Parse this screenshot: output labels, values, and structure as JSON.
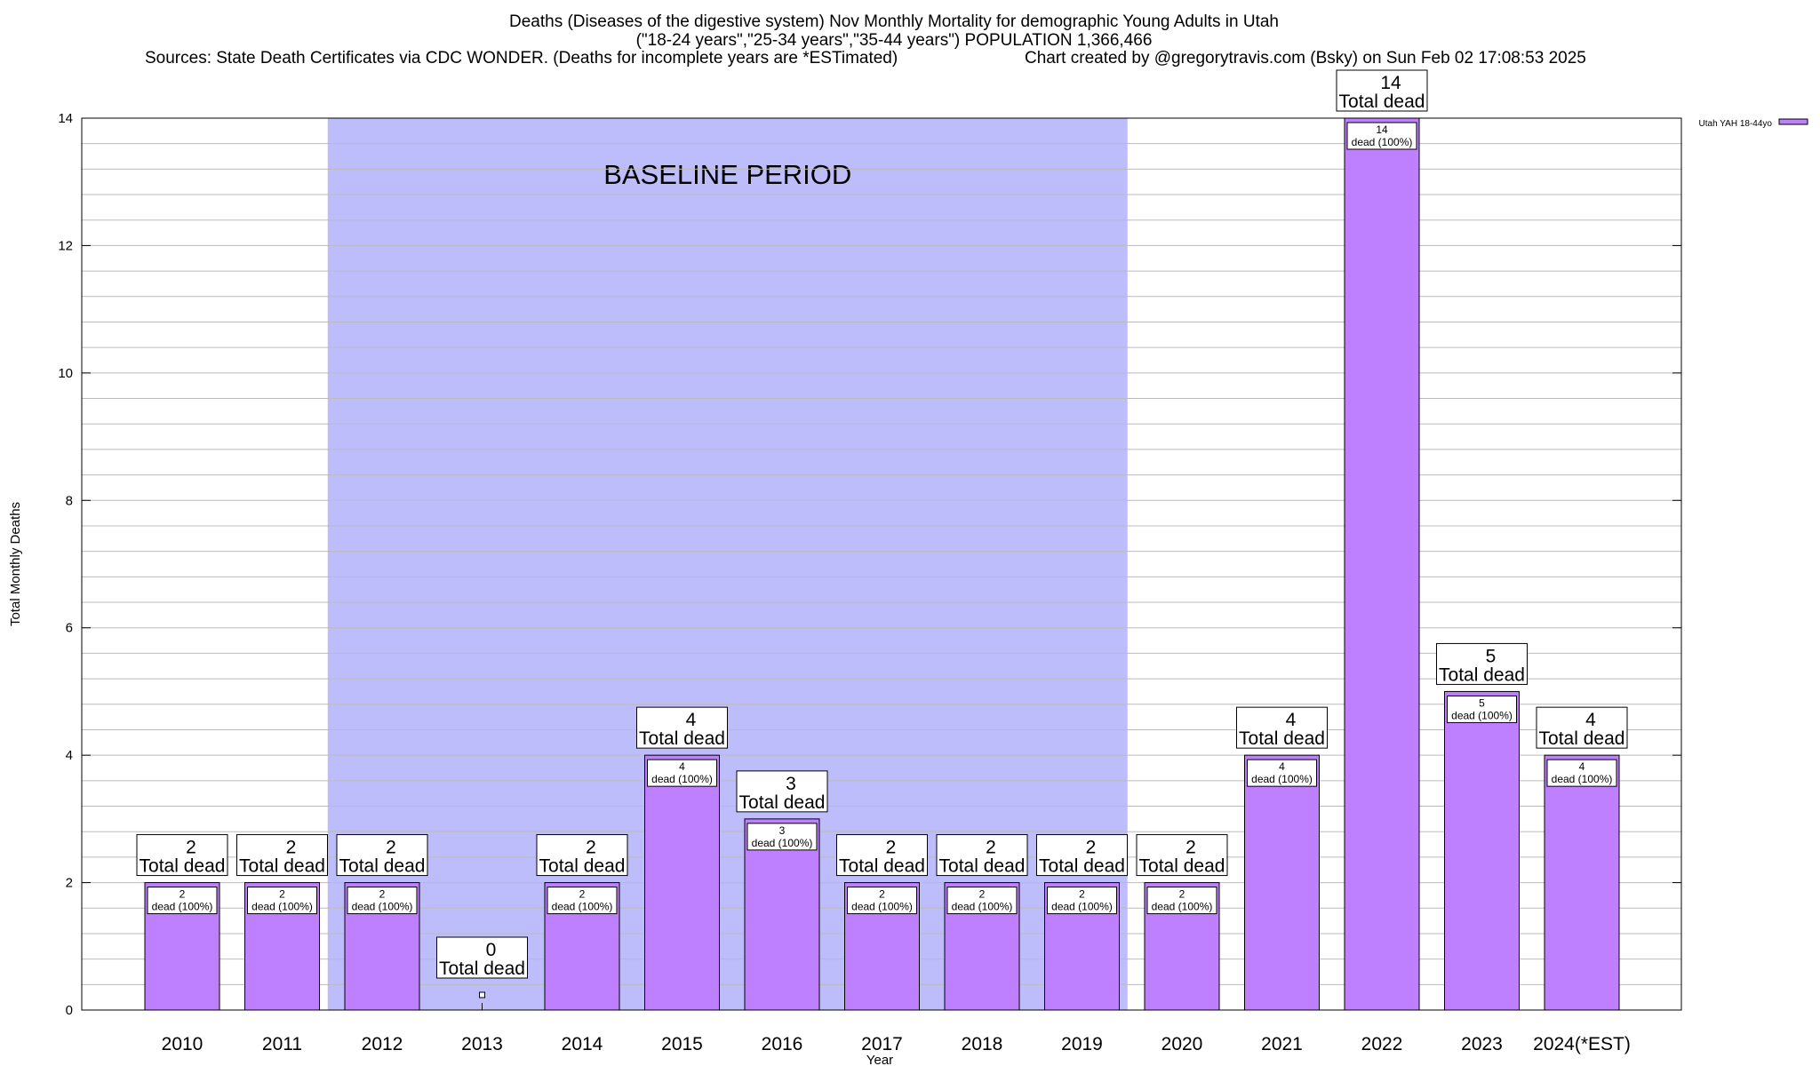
{
  "titles": {
    "line1": "Deaths (Diseases of the digestive system) Nov Monthly Mortality for demographic Young Adults in Utah",
    "line2": "(\"18-24 years\",\"25-34 years\",\"35-44 years\") POPULATION 1,366,466",
    "sources": "Sources: State Death Certificates via CDC WONDER. (Deaths for incomplete years are *ESTimated)",
    "credit": "Chart created by @gregorytravis.com (Bsky) on Sun Feb 02 17:08:53 2025"
  },
  "chart_data": {
    "type": "bar",
    "categories": [
      "2010",
      "2011",
      "2012",
      "2013",
      "2014",
      "2015",
      "2016",
      "2017",
      "2018",
      "2019",
      "2020",
      "2021",
      "2022",
      "2023",
      "2024(*EST)"
    ],
    "series": [
      {
        "name": "Utah YAH 18-44yo",
        "values": [
          2,
          2,
          2,
          0,
          2,
          4,
          3,
          2,
          2,
          2,
          2,
          4,
          14,
          5,
          4
        ]
      }
    ],
    "xlabel": "Year",
    "ylabel": "Total Monthly Deaths",
    "ylim": [
      0,
      14
    ],
    "yticks": [
      0,
      2,
      4,
      6,
      8,
      10,
      12,
      14
    ],
    "grid": true,
    "legend_placement": "top-right",
    "baseline": {
      "label": "BASELINE PERIOD",
      "from": "2012",
      "to": "2019"
    },
    "top_label_suffix": "Total dead",
    "inner_label_suffix": "dead (100%)",
    "colors": {
      "bar": "#bf80ff",
      "baseline": "#bdbdfc"
    }
  }
}
